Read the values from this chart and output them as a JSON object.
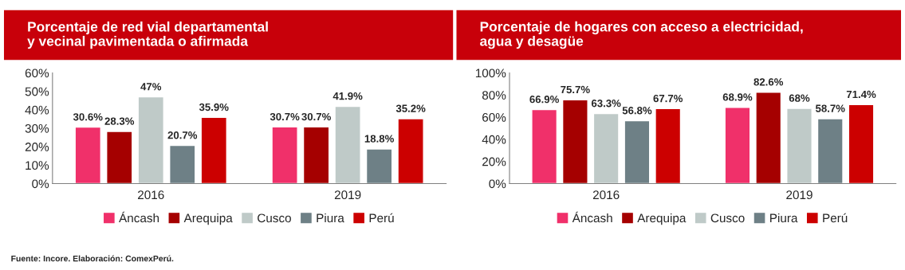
{
  "chart_data": [
    {
      "type": "bar",
      "title": "Porcentaje de red vial departamental\ny vecinal pavimentada o afirmada",
      "categories": [
        "2016",
        "2019"
      ],
      "series": [
        {
          "name": "Áncash",
          "color": "#f0306a",
          "values": [
            30.6,
            30.7
          ],
          "value_labels": [
            "30.6%",
            "30.7%"
          ]
        },
        {
          "name": "Arequipa",
          "color": "#a50000",
          "values": [
            28.3,
            30.7
          ],
          "value_labels": [
            "28.3%",
            "30.7%"
          ]
        },
        {
          "name": "Cusco",
          "color": "#bfcac8",
          "values": [
            47,
            41.9
          ],
          "value_labels": [
            "47%",
            "41.9%"
          ]
        },
        {
          "name": "Piura",
          "color": "#6e8086",
          "values": [
            20.7,
            18.8
          ],
          "value_labels": [
            "20.7%",
            "18.8%"
          ]
        },
        {
          "name": "Perú",
          "color": "#cc0000",
          "values": [
            35.9,
            35.2
          ],
          "value_labels": [
            "35.9%",
            "35.2%"
          ]
        }
      ],
      "ylim": [
        0,
        60
      ],
      "yticks": [
        {
          "value": 0,
          "label": "0%"
        },
        {
          "value": 10,
          "label": "10%"
        },
        {
          "value": 20,
          "label": "20%"
        },
        {
          "value": 30,
          "label": "30%"
        },
        {
          "value": 40,
          "label": "40%"
        },
        {
          "value": 50,
          "label": "50%"
        },
        {
          "value": 60,
          "label": "60%"
        }
      ],
      "legend": "bottom",
      "grid": false,
      "annotations": [
        "Fuente: Incore. Elaboración: ComexPerú."
      ]
    },
    {
      "type": "bar",
      "title": "Porcentaje de hogares con acceso a electricidad,\nagua y desagüe",
      "categories": [
        "2016",
        "2019"
      ],
      "series": [
        {
          "name": "Áncash",
          "color": "#f0306a",
          "values": [
            66.9,
            68.9
          ],
          "value_labels": [
            "66.9%",
            "68.9%"
          ]
        },
        {
          "name": "Arequipa",
          "color": "#a50000",
          "values": [
            75.7,
            82.6
          ],
          "value_labels": [
            "75.7%",
            "82.6%"
          ]
        },
        {
          "name": "Cusco",
          "color": "#bfcac8",
          "values": [
            63.3,
            68
          ],
          "value_labels": [
            "63.3%",
            "68%"
          ]
        },
        {
          "name": "Piura",
          "color": "#6e8086",
          "values": [
            56.8,
            58.7
          ],
          "value_labels": [
            "56.8%",
            "58.7%"
          ]
        },
        {
          "name": "Perú",
          "color": "#cc0000",
          "values": [
            67.7,
            71.4
          ],
          "value_labels": [
            "67.7%",
            "71.4%"
          ]
        }
      ],
      "ylim": [
        0,
        100
      ],
      "yticks": [
        {
          "value": 0,
          "label": "0%"
        },
        {
          "value": 20,
          "label": "20%"
        },
        {
          "value": 40,
          "label": "40%"
        },
        {
          "value": 60,
          "label": "60%"
        },
        {
          "value": 80,
          "label": "80%"
        },
        {
          "value": 100,
          "label": "100%"
        }
      ],
      "legend": "bottom",
      "grid": false
    }
  ]
}
